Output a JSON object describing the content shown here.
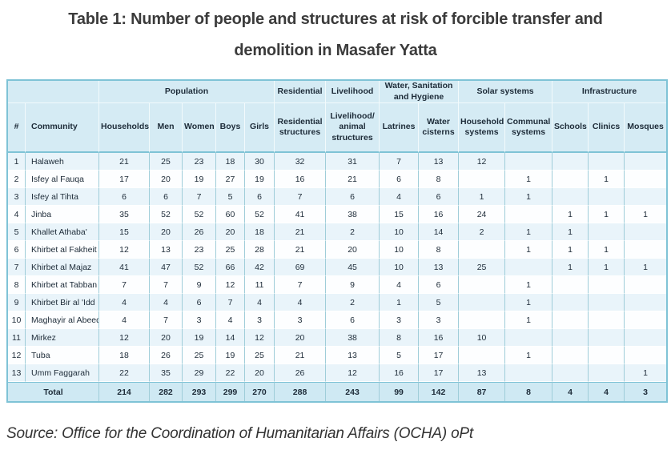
{
  "title": {
    "line1": "Table 1: Number of people and structures at risk of forcible transfer and",
    "line2": "demolition in Masafer Yatta"
  },
  "source": "Source: Office for the Coordination of Humanitarian Affairs (OCHA) oPt",
  "colors": {
    "header_bg": "#d5ebf4",
    "row_alt_bg": "#e9f4fa",
    "total_bg": "#cfe9f3",
    "border_strong": "#7fc3d6",
    "text_dark": "#1d2b38"
  },
  "table": {
    "col_groups": [
      {
        "label": "",
        "span": 2
      },
      {
        "label": "Population",
        "span": 5
      },
      {
        "label": "Residential",
        "span": 1
      },
      {
        "label": "Livelihood",
        "span": 1
      },
      {
        "label": "Water, Sanitation and Hygiene",
        "span": 2
      },
      {
        "label": "Solar systems",
        "span": 2
      },
      {
        "label": "Infrastructure",
        "span": 3
      }
    ],
    "columns": [
      "#",
      "Community",
      "Households",
      "Men",
      "Women",
      "Boys",
      "Girls",
      "Residential structures",
      "Livelihood/ animal structures",
      "Latrines",
      "Water cisterns",
      "Household systems",
      "Communal systems",
      "Schools",
      "Clinics",
      "Mosques"
    ],
    "rows": [
      {
        "num": "1",
        "community": "Halaweh",
        "values": [
          "21",
          "25",
          "23",
          "18",
          "30",
          "32",
          "31",
          "7",
          "13",
          "12",
          "",
          "",
          "",
          ""
        ]
      },
      {
        "num": "2",
        "community": "Isfey al Fauqa",
        "values": [
          "17",
          "20",
          "19",
          "27",
          "19",
          "16",
          "21",
          "6",
          "8",
          "",
          "1",
          "",
          "1",
          ""
        ]
      },
      {
        "num": "3",
        "community": "Isfey al Tihta",
        "values": [
          "6",
          "6",
          "7",
          "5",
          "6",
          "7",
          "6",
          "4",
          "6",
          "1",
          "1",
          "",
          "",
          ""
        ]
      },
      {
        "num": "4",
        "community": "Jinba",
        "values": [
          "35",
          "52",
          "52",
          "60",
          "52",
          "41",
          "38",
          "15",
          "16",
          "24",
          "",
          "1",
          "1",
          "1"
        ]
      },
      {
        "num": "5",
        "community": "Khallet Athaba'",
        "values": [
          "15",
          "20",
          "26",
          "20",
          "18",
          "21",
          "2",
          "10",
          "14",
          "2",
          "1",
          "1",
          "",
          ""
        ]
      },
      {
        "num": "6",
        "community": "Khirbet al Fakheit",
        "values": [
          "12",
          "13",
          "23",
          "25",
          "28",
          "21",
          "20",
          "10",
          "8",
          "",
          "1",
          "1",
          "1",
          ""
        ]
      },
      {
        "num": "7",
        "community": "Khirbet al Majaz",
        "values": [
          "41",
          "47",
          "52",
          "66",
          "42",
          "69",
          "45",
          "10",
          "13",
          "25",
          "",
          "1",
          "1",
          "1"
        ]
      },
      {
        "num": "8",
        "community": "Khirbet at Tabban",
        "values": [
          "7",
          "7",
          "9",
          "12",
          "11",
          "7",
          "9",
          "4",
          "6",
          "",
          "1",
          "",
          "",
          ""
        ]
      },
      {
        "num": "9",
        "community": "Khirbet Bir al 'Idd",
        "values": [
          "4",
          "4",
          "6",
          "7",
          "4",
          "4",
          "2",
          "1",
          "5",
          "",
          "1",
          "",
          "",
          ""
        ]
      },
      {
        "num": "10",
        "community": "Maghayir al Abeed",
        "values": [
          "4",
          "7",
          "3",
          "4",
          "3",
          "3",
          "6",
          "3",
          "3",
          "",
          "1",
          "",
          "",
          ""
        ]
      },
      {
        "num": "11",
        "community": "Mirkez",
        "values": [
          "12",
          "20",
          "19",
          "14",
          "12",
          "20",
          "38",
          "8",
          "16",
          "10",
          "",
          "",
          "",
          ""
        ]
      },
      {
        "num": "12",
        "community": "Tuba",
        "values": [
          "18",
          "26",
          "25",
          "19",
          "25",
          "21",
          "13",
          "5",
          "17",
          "",
          "1",
          "",
          "",
          ""
        ]
      },
      {
        "num": "13",
        "community": "Umm Faggarah",
        "values": [
          "22",
          "35",
          "29",
          "22",
          "20",
          "26",
          "12",
          "16",
          "17",
          "13",
          "",
          "",
          "",
          "1"
        ]
      }
    ],
    "total": {
      "label": "Total",
      "values": [
        "214",
        "282",
        "293",
        "299",
        "270",
        "288",
        "243",
        "99",
        "142",
        "87",
        "8",
        "4",
        "4",
        "3"
      ]
    }
  }
}
